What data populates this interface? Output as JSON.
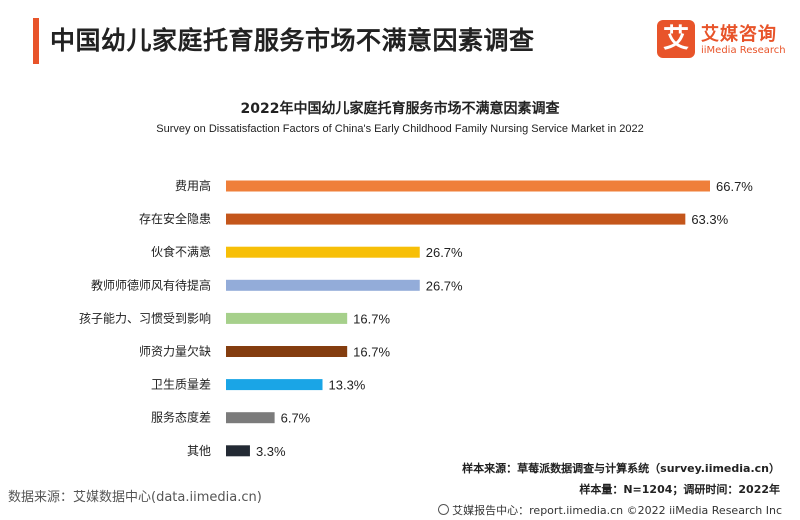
{
  "header": {
    "title": "中国幼儿家庭托育服务市场不满意因素调查"
  },
  "logo": {
    "mark": "艾",
    "cn": "艾媒咨询",
    "en": "iiMedia Research"
  },
  "colors": {
    "accent": "#e8542a"
  },
  "chart_data": {
    "type": "bar",
    "orientation": "horizontal",
    "title": "2022年中国幼儿家庭托育服务市场不满意因素调查",
    "subtitle": "Survey on Dissatisfaction Factors of China's Early Childhood Family Nursing Service Market in 2022",
    "xlabel": "",
    "ylabel": "",
    "xlim": [
      0,
      66.7
    ],
    "unit": "%",
    "grid": false,
    "legend": "none",
    "categories": [
      "费用高",
      "存在安全隐患",
      "伙食不满意",
      "教师师德师风有待提高",
      "孩子能力、习惯受到影响",
      "师资力量欠缺",
      "卫生质量差",
      "服务态度差",
      "其他"
    ],
    "values": [
      66.7,
      63.3,
      26.7,
      26.7,
      16.7,
      16.7,
      13.3,
      6.7,
      3.3
    ],
    "value_labels": [
      "66.7%",
      "63.3%",
      "26.7%",
      "26.7%",
      "16.7%",
      "16.7%",
      "13.3%",
      "6.7%",
      "3.3%"
    ],
    "bar_colors": [
      "#ef7f3a",
      "#c4561b",
      "#f7bf07",
      "#93acd9",
      "#a6d08b",
      "#843d0f",
      "#1aa5e6",
      "#7b7b7b",
      "#232a34"
    ]
  },
  "footnotes": {
    "sample_source": "样本来源：草莓派数据调查与计算系统（survey.iimedia.cn）",
    "sample_size": "样本量：N=1204；调研时间：2022年"
  },
  "data_source": "数据来源：艾媒数据中心(data.iimedia.cn)",
  "copyright": "艾媒报告中心：report.iimedia.cn  ©2022  iiMedia Research  Inc"
}
